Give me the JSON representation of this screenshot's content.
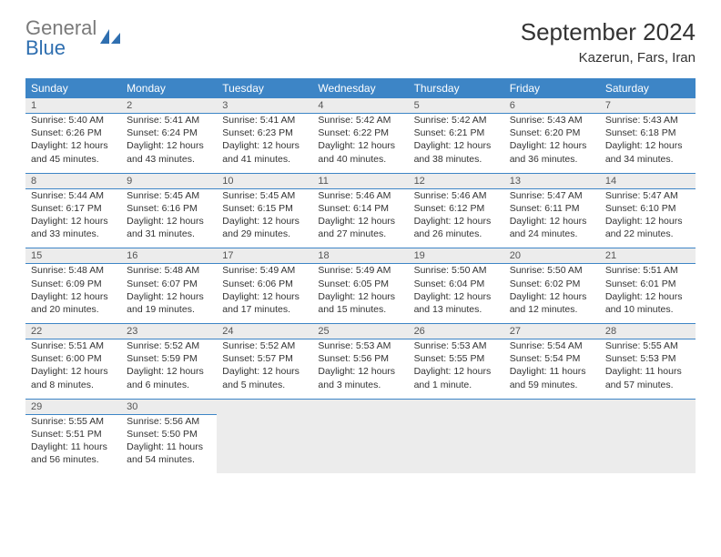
{
  "brand": {
    "part1": "General",
    "part2": "Blue"
  },
  "title": "September 2024",
  "location": "Kazerun, Fars, Iran",
  "colors": {
    "header_bg": "#3d85c6",
    "header_text": "#ffffff",
    "daynum_bg": "#ececec",
    "border": "#3d85c6",
    "text": "#333333",
    "logo_gray": "#7a7a7a",
    "logo_blue": "#2f6fb0"
  },
  "weekdays": [
    "Sunday",
    "Monday",
    "Tuesday",
    "Wednesday",
    "Thursday",
    "Friday",
    "Saturday"
  ],
  "weeks": [
    [
      {
        "n": "1",
        "sr": "Sunrise: 5:40 AM",
        "ss": "Sunset: 6:26 PM",
        "d1": "Daylight: 12 hours",
        "d2": "and 45 minutes."
      },
      {
        "n": "2",
        "sr": "Sunrise: 5:41 AM",
        "ss": "Sunset: 6:24 PM",
        "d1": "Daylight: 12 hours",
        "d2": "and 43 minutes."
      },
      {
        "n": "3",
        "sr": "Sunrise: 5:41 AM",
        "ss": "Sunset: 6:23 PM",
        "d1": "Daylight: 12 hours",
        "d2": "and 41 minutes."
      },
      {
        "n": "4",
        "sr": "Sunrise: 5:42 AM",
        "ss": "Sunset: 6:22 PM",
        "d1": "Daylight: 12 hours",
        "d2": "and 40 minutes."
      },
      {
        "n": "5",
        "sr": "Sunrise: 5:42 AM",
        "ss": "Sunset: 6:21 PM",
        "d1": "Daylight: 12 hours",
        "d2": "and 38 minutes."
      },
      {
        "n": "6",
        "sr": "Sunrise: 5:43 AM",
        "ss": "Sunset: 6:20 PM",
        "d1": "Daylight: 12 hours",
        "d2": "and 36 minutes."
      },
      {
        "n": "7",
        "sr": "Sunrise: 5:43 AM",
        "ss": "Sunset: 6:18 PM",
        "d1": "Daylight: 12 hours",
        "d2": "and 34 minutes."
      }
    ],
    [
      {
        "n": "8",
        "sr": "Sunrise: 5:44 AM",
        "ss": "Sunset: 6:17 PM",
        "d1": "Daylight: 12 hours",
        "d2": "and 33 minutes."
      },
      {
        "n": "9",
        "sr": "Sunrise: 5:45 AM",
        "ss": "Sunset: 6:16 PM",
        "d1": "Daylight: 12 hours",
        "d2": "and 31 minutes."
      },
      {
        "n": "10",
        "sr": "Sunrise: 5:45 AM",
        "ss": "Sunset: 6:15 PM",
        "d1": "Daylight: 12 hours",
        "d2": "and 29 minutes."
      },
      {
        "n": "11",
        "sr": "Sunrise: 5:46 AM",
        "ss": "Sunset: 6:14 PM",
        "d1": "Daylight: 12 hours",
        "d2": "and 27 minutes."
      },
      {
        "n": "12",
        "sr": "Sunrise: 5:46 AM",
        "ss": "Sunset: 6:12 PM",
        "d1": "Daylight: 12 hours",
        "d2": "and 26 minutes."
      },
      {
        "n": "13",
        "sr": "Sunrise: 5:47 AM",
        "ss": "Sunset: 6:11 PM",
        "d1": "Daylight: 12 hours",
        "d2": "and 24 minutes."
      },
      {
        "n": "14",
        "sr": "Sunrise: 5:47 AM",
        "ss": "Sunset: 6:10 PM",
        "d1": "Daylight: 12 hours",
        "d2": "and 22 minutes."
      }
    ],
    [
      {
        "n": "15",
        "sr": "Sunrise: 5:48 AM",
        "ss": "Sunset: 6:09 PM",
        "d1": "Daylight: 12 hours",
        "d2": "and 20 minutes."
      },
      {
        "n": "16",
        "sr": "Sunrise: 5:48 AM",
        "ss": "Sunset: 6:07 PM",
        "d1": "Daylight: 12 hours",
        "d2": "and 19 minutes."
      },
      {
        "n": "17",
        "sr": "Sunrise: 5:49 AM",
        "ss": "Sunset: 6:06 PM",
        "d1": "Daylight: 12 hours",
        "d2": "and 17 minutes."
      },
      {
        "n": "18",
        "sr": "Sunrise: 5:49 AM",
        "ss": "Sunset: 6:05 PM",
        "d1": "Daylight: 12 hours",
        "d2": "and 15 minutes."
      },
      {
        "n": "19",
        "sr": "Sunrise: 5:50 AM",
        "ss": "Sunset: 6:04 PM",
        "d1": "Daylight: 12 hours",
        "d2": "and 13 minutes."
      },
      {
        "n": "20",
        "sr": "Sunrise: 5:50 AM",
        "ss": "Sunset: 6:02 PM",
        "d1": "Daylight: 12 hours",
        "d2": "and 12 minutes."
      },
      {
        "n": "21",
        "sr": "Sunrise: 5:51 AM",
        "ss": "Sunset: 6:01 PM",
        "d1": "Daylight: 12 hours",
        "d2": "and 10 minutes."
      }
    ],
    [
      {
        "n": "22",
        "sr": "Sunrise: 5:51 AM",
        "ss": "Sunset: 6:00 PM",
        "d1": "Daylight: 12 hours",
        "d2": "and 8 minutes."
      },
      {
        "n": "23",
        "sr": "Sunrise: 5:52 AM",
        "ss": "Sunset: 5:59 PM",
        "d1": "Daylight: 12 hours",
        "d2": "and 6 minutes."
      },
      {
        "n": "24",
        "sr": "Sunrise: 5:52 AM",
        "ss": "Sunset: 5:57 PM",
        "d1": "Daylight: 12 hours",
        "d2": "and 5 minutes."
      },
      {
        "n": "25",
        "sr": "Sunrise: 5:53 AM",
        "ss": "Sunset: 5:56 PM",
        "d1": "Daylight: 12 hours",
        "d2": "and 3 minutes."
      },
      {
        "n": "26",
        "sr": "Sunrise: 5:53 AM",
        "ss": "Sunset: 5:55 PM",
        "d1": "Daylight: 12 hours",
        "d2": "and 1 minute."
      },
      {
        "n": "27",
        "sr": "Sunrise: 5:54 AM",
        "ss": "Sunset: 5:54 PM",
        "d1": "Daylight: 11 hours",
        "d2": "and 59 minutes."
      },
      {
        "n": "28",
        "sr": "Sunrise: 5:55 AM",
        "ss": "Sunset: 5:53 PM",
        "d1": "Daylight: 11 hours",
        "d2": "and 57 minutes."
      }
    ],
    [
      {
        "n": "29",
        "sr": "Sunrise: 5:55 AM",
        "ss": "Sunset: 5:51 PM",
        "d1": "Daylight: 11 hours",
        "d2": "and 56 minutes."
      },
      {
        "n": "30",
        "sr": "Sunrise: 5:56 AM",
        "ss": "Sunset: 5:50 PM",
        "d1": "Daylight: 11 hours",
        "d2": "and 54 minutes."
      },
      null,
      null,
      null,
      null,
      null
    ]
  ]
}
